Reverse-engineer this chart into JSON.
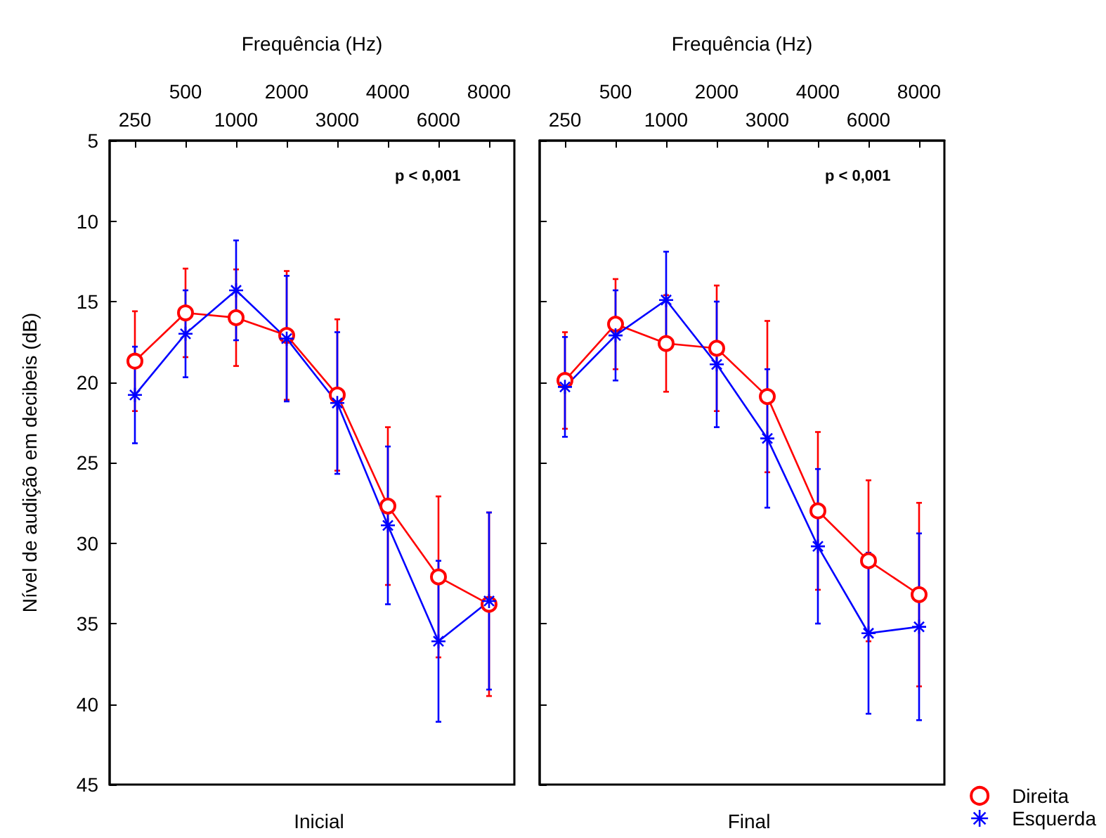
{
  "chart_data": [
    {
      "type": "line",
      "title": "Inicial",
      "xlabel": "Frequência (Hz)",
      "ylabel": "Nível de audição em decibeis (dB)",
      "categories": [
        "250",
        "500",
        "1000",
        "2000",
        "3000",
        "4000",
        "6000",
        "8000"
      ],
      "ylim": [
        45,
        5
      ],
      "yticks": [
        5,
        10,
        15,
        20,
        25,
        30,
        35,
        40,
        45
      ],
      "grid": false,
      "legend": false,
      "annotations": [
        "p < 0,001"
      ],
      "series": [
        {
          "color": "#ff0000",
          "marker": "circle",
          "values": [
            18.7,
            15.7,
            16.0,
            17.1,
            20.8,
            27.7,
            32.1,
            33.8
          ],
          "errors": [
            3.1,
            2.75,
            3.0,
            4.0,
            4.7,
            4.9,
            5.0,
            5.7
          ]
        },
        {
          "color": "#0000ff",
          "marker": "cross",
          "values": [
            20.8,
            17.0,
            14.3,
            17.3,
            21.3,
            28.9,
            36.1,
            33.6
          ],
          "errors": [
            3.0,
            2.7,
            3.1,
            3.9,
            4.4,
            4.9,
            5.0,
            5.5
          ]
        }
      ]
    },
    {
      "type": "line",
      "title": "Final",
      "xlabel": "Frequência (Hz)",
      "categories": [
        "250",
        "500",
        "1000",
        "2000",
        "3000",
        "4000",
        "6000",
        "8000"
      ],
      "ylim": [
        45,
        5
      ],
      "yticks": [
        5,
        10,
        15,
        20,
        25,
        30,
        35,
        40,
        45
      ],
      "tick_labels": "x",
      "grid": false,
      "legend": "bottom right",
      "annotations": [
        "p < 0,001"
      ],
      "series": [
        {
          "name": "Direita",
          "color": "#ff0000",
          "marker": "circle",
          "values": [
            19.9,
            16.4,
            17.6,
            17.9,
            20.9,
            28.0,
            31.1,
            33.2
          ],
          "errors": [
            3.0,
            2.8,
            3.0,
            3.9,
            4.7,
            4.9,
            5.0,
            5.7
          ]
        },
        {
          "name": "Esquerda",
          "color": "#0000ff",
          "marker": "cross",
          "values": [
            20.3,
            17.1,
            14.9,
            18.9,
            23.5,
            30.2,
            35.6,
            35.2
          ],
          "errors": [
            3.1,
            2.8,
            3.0,
            3.9,
            4.3,
            4.8,
            5.0,
            5.8
          ]
        }
      ]
    }
  ]
}
